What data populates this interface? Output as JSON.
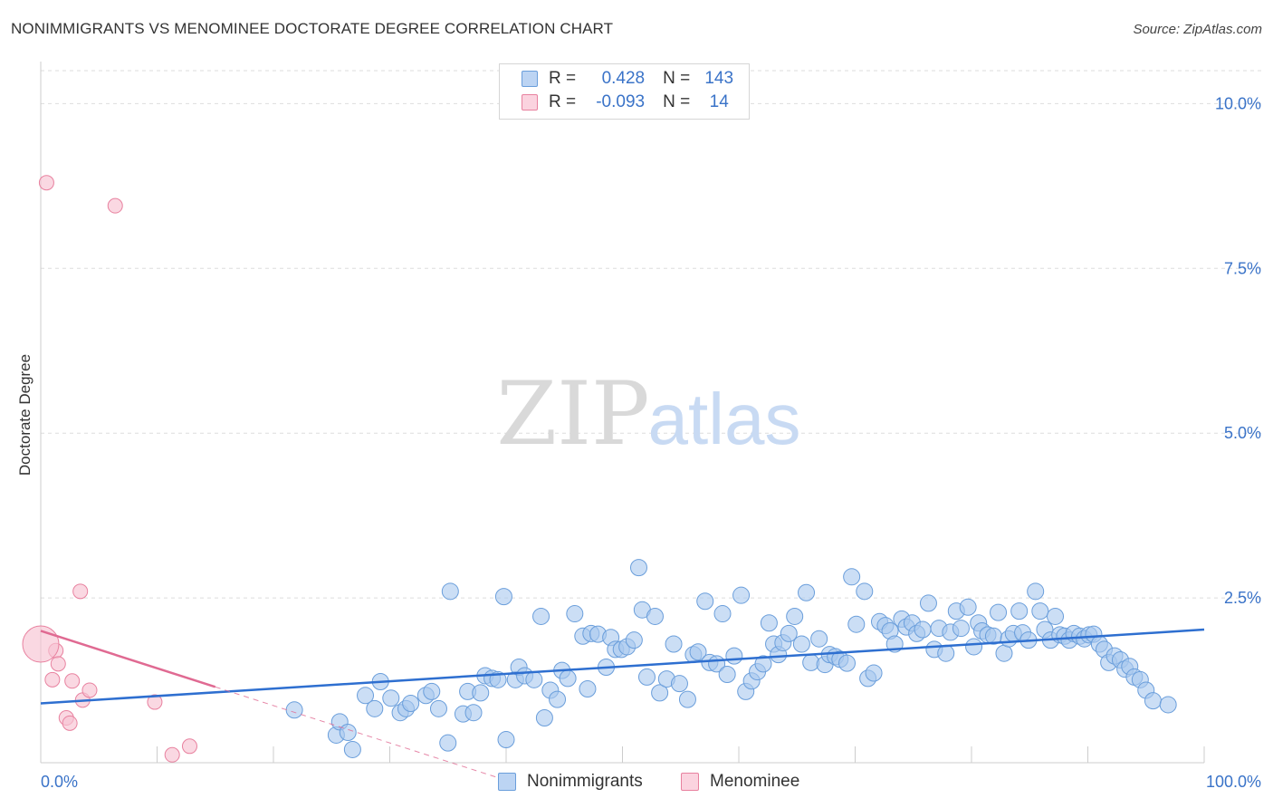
{
  "header": {
    "title": "NONIMMIGRANTS VS MENOMINEE DOCTORATE DEGREE CORRELATION CHART",
    "source": "Source: ZipAtlas.com"
  },
  "watermark": {
    "zip": "ZIP",
    "atlas": "atlas"
  },
  "legend": {
    "rows": [
      {
        "r_label": "R =",
        "r_value": "0.428",
        "n_label": "N =",
        "n_value": "143"
      },
      {
        "r_label": "R =",
        "r_value": "-0.093",
        "n_label": "N =",
        "n_value": "14"
      }
    ]
  },
  "bottom_legend": {
    "items": [
      {
        "label": "Nonimmigrants"
      },
      {
        "label": "Menominee"
      }
    ]
  },
  "colors": {
    "blue_fill": "#a9c8ee",
    "blue_stroke": "#6a9edb",
    "blue_line": "#2e6fd0",
    "pink_fill": "#f7c3d2",
    "pink_stroke": "#e8819f",
    "pink_line": "#e06a92",
    "axis_text": "#3a73c8",
    "grid": "#dddddd"
  },
  "chart_data": {
    "type": "scatter",
    "title": "NONIMMIGRANTS VS MENOMINEE DOCTORATE DEGREE CORRELATION CHART",
    "xlabel": "",
    "ylabel": "Doctorate Degree",
    "xlim": [
      0,
      100
    ],
    "ylim": [
      0,
      10.5
    ],
    "x_tick_labels": [
      "0.0%",
      "100.0%"
    ],
    "y_ticks": [
      2.5,
      5.0,
      7.5,
      10.0
    ],
    "y_tick_labels": [
      "2.5%",
      "5.0%",
      "7.5%",
      "10.0%"
    ],
    "grid": true,
    "series": [
      {
        "name": "Nonimmigrants",
        "color": "#a9c8ee",
        "trend": {
          "x0": 0,
          "y0": 0.9,
          "x1": 100,
          "y1": 2.02
        },
        "points": [
          [
            21.8,
            0.8
          ],
          [
            25.4,
            0.42
          ],
          [
            25.7,
            0.62
          ],
          [
            26.4,
            0.46
          ],
          [
            26.8,
            0.2
          ],
          [
            27.9,
            1.02
          ],
          [
            28.7,
            0.82
          ],
          [
            29.2,
            1.23
          ],
          [
            30.1,
            0.98
          ],
          [
            30.9,
            0.76
          ],
          [
            31.4,
            0.82
          ],
          [
            31.8,
            0.9
          ],
          [
            33.1,
            1.02
          ],
          [
            33.6,
            1.08
          ],
          [
            34.2,
            0.82
          ],
          [
            35.0,
            0.3
          ],
          [
            35.2,
            2.6
          ],
          [
            36.3,
            0.74
          ],
          [
            36.7,
            1.08
          ],
          [
            37.2,
            0.76
          ],
          [
            37.8,
            1.06
          ],
          [
            38.2,
            1.32
          ],
          [
            38.8,
            1.28
          ],
          [
            39.3,
            1.26
          ],
          [
            39.8,
            2.52
          ],
          [
            40.0,
            0.35
          ],
          [
            40.8,
            1.26
          ],
          [
            41.1,
            1.45
          ],
          [
            41.6,
            1.32
          ],
          [
            42.4,
            1.26
          ],
          [
            43.0,
            2.22
          ],
          [
            43.3,
            0.68
          ],
          [
            43.8,
            1.1
          ],
          [
            44.4,
            0.96
          ],
          [
            44.8,
            1.4
          ],
          [
            45.3,
            1.28
          ],
          [
            45.9,
            2.26
          ],
          [
            46.6,
            1.92
          ],
          [
            47.0,
            1.12
          ],
          [
            47.3,
            1.96
          ],
          [
            47.9,
            1.95
          ],
          [
            48.6,
            1.45
          ],
          [
            49.0,
            1.9
          ],
          [
            49.4,
            1.72
          ],
          [
            49.9,
            1.72
          ],
          [
            50.4,
            1.76
          ],
          [
            51.0,
            1.86
          ],
          [
            51.4,
            2.96
          ],
          [
            51.7,
            2.32
          ],
          [
            52.1,
            1.3
          ],
          [
            52.8,
            2.22
          ],
          [
            53.2,
            1.06
          ],
          [
            53.8,
            1.27
          ],
          [
            54.4,
            1.8
          ],
          [
            54.9,
            1.2
          ],
          [
            55.6,
            0.96
          ],
          [
            56.1,
            1.64
          ],
          [
            56.5,
            1.68
          ],
          [
            57.1,
            2.45
          ],
          [
            57.5,
            1.52
          ],
          [
            58.1,
            1.5
          ],
          [
            58.6,
            2.26
          ],
          [
            59.0,
            1.34
          ],
          [
            59.6,
            1.62
          ],
          [
            60.2,
            2.54
          ],
          [
            60.6,
            1.08
          ],
          [
            61.1,
            1.24
          ],
          [
            61.6,
            1.38
          ],
          [
            62.1,
            1.5
          ],
          [
            62.6,
            2.12
          ],
          [
            63.0,
            1.8
          ],
          [
            63.4,
            1.64
          ],
          [
            63.8,
            1.82
          ],
          [
            64.3,
            1.96
          ],
          [
            64.8,
            2.22
          ],
          [
            65.4,
            1.8
          ],
          [
            65.8,
            2.58
          ],
          [
            66.2,
            1.52
          ],
          [
            66.9,
            1.88
          ],
          [
            67.4,
            1.49
          ],
          [
            67.8,
            1.64
          ],
          [
            68.3,
            1.61
          ],
          [
            68.7,
            1.57
          ],
          [
            69.3,
            1.51
          ],
          [
            69.7,
            2.82
          ],
          [
            70.1,
            2.1
          ],
          [
            70.8,
            2.6
          ],
          [
            71.1,
            1.28
          ],
          [
            71.6,
            1.36
          ],
          [
            72.1,
            2.14
          ],
          [
            72.6,
            2.08
          ],
          [
            73.0,
            2.0
          ],
          [
            73.4,
            1.8
          ],
          [
            74.0,
            2.18
          ],
          [
            74.4,
            2.06
          ],
          [
            74.9,
            2.12
          ],
          [
            75.3,
            1.96
          ],
          [
            75.8,
            2.02
          ],
          [
            76.3,
            2.42
          ],
          [
            76.8,
            1.72
          ],
          [
            77.2,
            2.04
          ],
          [
            77.8,
            1.66
          ],
          [
            78.2,
            1.98
          ],
          [
            78.7,
            2.3
          ],
          [
            79.1,
            2.04
          ],
          [
            79.7,
            2.36
          ],
          [
            80.2,
            1.76
          ],
          [
            80.6,
            2.12
          ],
          [
            80.9,
            2.0
          ],
          [
            81.4,
            1.94
          ],
          [
            81.9,
            1.92
          ],
          [
            82.3,
            2.28
          ],
          [
            82.8,
            1.66
          ],
          [
            83.2,
            1.88
          ],
          [
            83.6,
            1.96
          ],
          [
            84.1,
            2.3
          ],
          [
            84.4,
            1.97
          ],
          [
            84.9,
            1.86
          ],
          [
            85.5,
            2.6
          ],
          [
            85.9,
            2.3
          ],
          [
            86.3,
            2.02
          ],
          [
            86.8,
            1.86
          ],
          [
            87.2,
            2.22
          ],
          [
            87.6,
            1.94
          ],
          [
            88.0,
            1.92
          ],
          [
            88.4,
            1.86
          ],
          [
            88.8,
            1.96
          ],
          [
            89.3,
            1.92
          ],
          [
            89.7,
            1.88
          ],
          [
            90.1,
            1.94
          ],
          [
            90.5,
            1.95
          ],
          [
            91.0,
            1.8
          ],
          [
            91.4,
            1.72
          ],
          [
            91.8,
            1.52
          ],
          [
            92.3,
            1.62
          ],
          [
            92.8,
            1.56
          ],
          [
            93.2,
            1.42
          ],
          [
            93.6,
            1.46
          ],
          [
            94.0,
            1.3
          ],
          [
            94.5,
            1.26
          ],
          [
            95.0,
            1.1
          ],
          [
            95.6,
            0.94
          ],
          [
            96.9,
            0.88
          ]
        ]
      },
      {
        "name": "Menominee",
        "color": "#f7c3d2",
        "trend": {
          "x0": 0,
          "y0": 2.0,
          "x1": 15,
          "y1": 1.15,
          "dashed_to_x": 40
        },
        "points": [
          [
            0.5,
            8.8
          ],
          [
            1.0,
            1.26
          ],
          [
            1.3,
            1.7
          ],
          [
            1.5,
            1.5
          ],
          [
            2.2,
            0.68
          ],
          [
            2.5,
            0.6
          ],
          [
            2.7,
            1.24
          ],
          [
            3.4,
            2.6
          ],
          [
            3.6,
            0.95
          ],
          [
            4.2,
            1.1
          ],
          [
            6.4,
            8.45
          ],
          [
            9.8,
            0.92
          ],
          [
            11.3,
            0.12
          ],
          [
            12.8,
            0.25
          ]
        ]
      }
    ]
  }
}
